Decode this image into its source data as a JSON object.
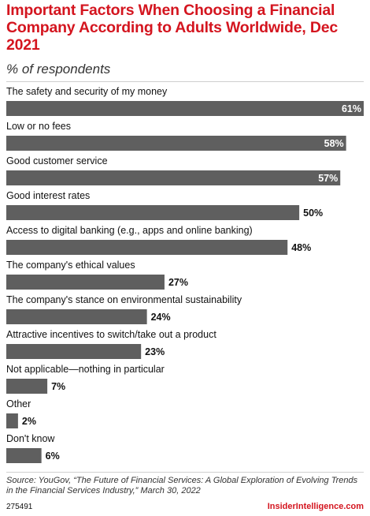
{
  "header": {
    "title": "Important Factors When Choosing a Financial Company According to Adults Worldwide, Dec 2021",
    "subtitle": "% of respondents"
  },
  "footer": {
    "source": "Source: YouGov, “The Future of Financial Services: A Global Exploration of Evolving Trends in the Financial Services Industry,” March 30, 2022",
    "id": "275491",
    "brand": "InsiderIntelligence.com"
  },
  "colors": {
    "bar": "#5f5f5f",
    "title": "#d4151f",
    "value_inside": "#ffffff",
    "value_outside": "#111111"
  },
  "chart_data": {
    "type": "bar",
    "orientation": "horizontal",
    "categories": [
      "The safety and security of my money",
      "Low or no fees",
      "Good customer service",
      "Good interest rates",
      "Access to digital banking (e.g., apps and online banking)",
      "The company's ethical values",
      "The company's stance on environmental sustainability",
      "Attractive incentives to switch/take out a product",
      "Not applicable—nothing in particular",
      "Other",
      "Don't know"
    ],
    "values": [
      61,
      58,
      57,
      50,
      48,
      27,
      24,
      23,
      7,
      2,
      6
    ],
    "value_labels": [
      "61%",
      "58%",
      "57%",
      "50%",
      "48%",
      "27%",
      "24%",
      "23%",
      "7%",
      "2%",
      "6%"
    ],
    "xlim": [
      0,
      61
    ]
  }
}
